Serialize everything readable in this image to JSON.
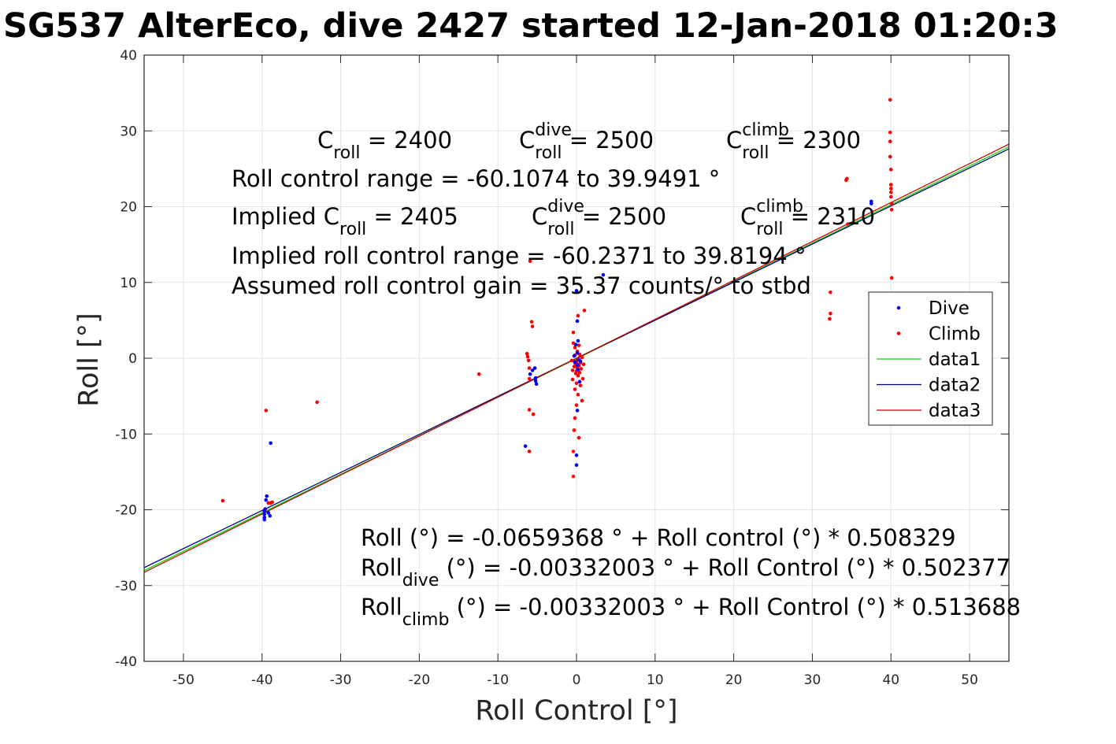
{
  "chart_data": {
    "type": "scatter",
    "title": "SG537 AlterEco, dive 2427 started 12-Jan-2018 01:20:3",
    "xlabel": "Roll Control [°]",
    "ylabel": "Roll [°]",
    "xlim": [
      -55,
      55
    ],
    "ylim": [
      -40,
      40
    ],
    "xticks": [
      -50,
      -40,
      -30,
      -20,
      -10,
      0,
      10,
      20,
      30,
      40,
      50
    ],
    "yticks": [
      -40,
      -30,
      -20,
      -10,
      0,
      10,
      20,
      30,
      40
    ],
    "grid": true,
    "legend": "right",
    "series": [
      {
        "name": "Dive",
        "kind": "points",
        "color": "#0000ff",
        "points": [
          [
            -39.7,
            -20.2
          ],
          [
            -39.7,
            -20.6
          ],
          [
            -39.7,
            -21.0
          ],
          [
            -39.7,
            -21.3
          ],
          [
            -39.6,
            -19.9
          ],
          [
            -39.5,
            -18.7
          ],
          [
            -39.4,
            -18.2
          ],
          [
            -39.2,
            -20.4
          ],
          [
            -39.0,
            -20.8
          ],
          [
            -38.9,
            -11.2
          ],
          [
            -6.5,
            -11.6
          ],
          [
            -5.9,
            -2.1
          ],
          [
            -5.6,
            -1.6
          ],
          [
            -5.3,
            -1.3
          ],
          [
            -5.2,
            -2.6
          ],
          [
            -5.2,
            -3.0
          ],
          [
            -5.1,
            -3.4
          ],
          [
            -0.3,
            0.3
          ],
          [
            -0.2,
            -0.5
          ],
          [
            -0.1,
            1.8
          ],
          [
            0.0,
            8.9
          ],
          [
            0.1,
            4.9
          ],
          [
            0.1,
            0.7
          ],
          [
            0.1,
            -0.9
          ],
          [
            0.1,
            -6.9
          ],
          [
            0.0,
            -12.8
          ],
          [
            0.0,
            -14.1
          ],
          [
            0.2,
            2.3
          ],
          [
            0.2,
            -1.5
          ],
          [
            0.3,
            -0.2
          ],
          [
            0.4,
            -3.1
          ],
          [
            0.5,
            -0.4
          ],
          [
            3.4,
            11.0
          ],
          [
            37.5,
            20.4
          ],
          [
            37.5,
            20.7
          ]
        ]
      },
      {
        "name": "Climb",
        "kind": "points",
        "color": "#ff0000",
        "points": [
          [
            -45.0,
            -18.8
          ],
          [
            -39.5,
            -6.9
          ],
          [
            -39.2,
            -19.1
          ],
          [
            -38.9,
            -19.1
          ],
          [
            -38.7,
            -19.0
          ],
          [
            -33.0,
            -5.8
          ],
          [
            -12.4,
            -2.1
          ],
          [
            -6.3,
            0.6
          ],
          [
            -6.2,
            0.2
          ],
          [
            -6.1,
            -0.3
          ],
          [
            -6.0,
            -1.3
          ],
          [
            -6.0,
            -2.7
          ],
          [
            -6.0,
            -6.8
          ],
          [
            -6.0,
            -12.3
          ],
          [
            -5.9,
            12.8
          ],
          [
            -5.7,
            4.8
          ],
          [
            -5.6,
            4.2
          ],
          [
            -5.5,
            -7.4
          ],
          [
            -0.6,
            -0.3
          ],
          [
            -0.5,
            -1.6
          ],
          [
            -0.5,
            -2.8
          ],
          [
            -0.4,
            3.4
          ],
          [
            -0.4,
            2.0
          ],
          [
            -0.4,
            -12.3
          ],
          [
            -0.4,
            -15.6
          ],
          [
            -0.3,
            -1.1
          ],
          [
            -0.3,
            -9.5
          ],
          [
            -0.2,
            1.4
          ],
          [
            -0.2,
            0.4
          ],
          [
            -0.2,
            -0.6
          ],
          [
            -0.2,
            -4.1
          ],
          [
            -0.2,
            -7.9
          ],
          [
            -0.1,
            -0.9
          ],
          [
            -0.1,
            -2.0
          ],
          [
            0.0,
            -0.4
          ],
          [
            0.0,
            -1.7
          ],
          [
            0.0,
            -3.3
          ],
          [
            0.0,
            -6.2
          ],
          [
            0.1,
            0.9
          ],
          [
            0.1,
            -0.8
          ],
          [
            0.1,
            -1.3
          ],
          [
            0.2,
            5.6
          ],
          [
            0.2,
            -0.1
          ],
          [
            0.2,
            -2.3
          ],
          [
            0.2,
            -4.8
          ],
          [
            0.3,
            1.7
          ],
          [
            0.3,
            -1.0
          ],
          [
            0.3,
            -10.5
          ],
          [
            0.4,
            0.5
          ],
          [
            0.4,
            -1.9
          ],
          [
            0.5,
            -0.6
          ],
          [
            0.5,
            -3.6
          ],
          [
            0.6,
            -1.4
          ],
          [
            0.7,
            0.1
          ],
          [
            0.7,
            -5.6
          ],
          [
            0.8,
            -2.7
          ],
          [
            0.9,
            -0.8
          ],
          [
            1.0,
            6.3
          ],
          [
            32.3,
            8.7
          ],
          [
            32.3,
            5.9
          ],
          [
            32.2,
            5.2
          ],
          [
            34.3,
            23.5
          ],
          [
            34.4,
            23.7
          ],
          [
            34.5,
            17.7
          ],
          [
            39.9,
            34.1
          ],
          [
            39.9,
            29.8
          ],
          [
            39.9,
            28.6
          ],
          [
            39.9,
            26.6
          ],
          [
            40.0,
            24.9
          ],
          [
            40.0,
            22.9
          ],
          [
            40.0,
            22.4
          ],
          [
            40.0,
            21.9
          ],
          [
            40.0,
            21.3
          ],
          [
            40.1,
            20.4
          ],
          [
            40.1,
            19.6
          ],
          [
            40.1,
            10.6
          ]
        ]
      },
      {
        "name": "data1",
        "kind": "line",
        "color": "#00dd00",
        "intercept": -0.0659368,
        "slope": 0.508329
      },
      {
        "name": "data2",
        "kind": "line",
        "color": "#000080",
        "intercept": -0.00332003,
        "slope": 0.502377
      },
      {
        "name": "data3",
        "kind": "line",
        "color": "#cc0000",
        "intercept": -0.00332003,
        "slope": 0.513688
      }
    ],
    "annotations": {
      "top": [
        {
          "parts": [
            {
              "t": "C"
            },
            {
              "t": "roll",
              "sub": true
            },
            {
              "t": " = 2400"
            }
          ]
        },
        {
          "parts": [
            {
              "t": "C"
            },
            {
              "t": "dive",
              "sup": true
            },
            {
              "t": "roll",
              "sub": true
            },
            {
              "t": " = 2500"
            }
          ]
        },
        {
          "parts": [
            {
              "t": "C"
            },
            {
              "t": "climb",
              "sup": true
            },
            {
              "t": "roll",
              "sub": true
            },
            {
              "t": " = 2300"
            }
          ]
        },
        {
          "parts": [
            {
              "t": "Roll control range = -60.1074 to 39.9491 °"
            }
          ]
        },
        {
          "parts": [
            {
              "t": "Implied C"
            },
            {
              "t": "roll",
              "sub": true
            },
            {
              "t": " = 2405"
            }
          ]
        },
        {
          "parts": [
            {
              "t": "C"
            },
            {
              "t": "dive",
              "sup": true
            },
            {
              "t": "roll",
              "sub": true
            },
            {
              "t": " = 2500"
            }
          ]
        },
        {
          "parts": [
            {
              "t": "C"
            },
            {
              "t": "climb",
              "sup": true
            },
            {
              "t": "roll",
              "sub": true
            },
            {
              "t": " = 2310"
            }
          ]
        },
        {
          "parts": [
            {
              "t": "Implied roll control range = -60.2371 to 39.8194 °"
            }
          ]
        },
        {
          "parts": [
            {
              "t": "Assumed roll control gain = 35.37 counts/° to stbd"
            }
          ]
        }
      ],
      "bottom": [
        {
          "parts": [
            {
              "t": "Roll (°) = -0.0659368 ° + Roll control (°) * 0.508329"
            }
          ]
        },
        {
          "parts": [
            {
              "t": "Roll"
            },
            {
              "t": "dive",
              "sub": true
            },
            {
              "t": " (°) = -0.00332003 ° + Roll Control (°) * 0.502377"
            }
          ]
        },
        {
          "parts": [
            {
              "t": "Roll"
            },
            {
              "t": "climb",
              "sub": true
            },
            {
              "t": " (°) = -0.00332003 ° + Roll Control (°) * 0.513688"
            }
          ]
        }
      ]
    }
  }
}
